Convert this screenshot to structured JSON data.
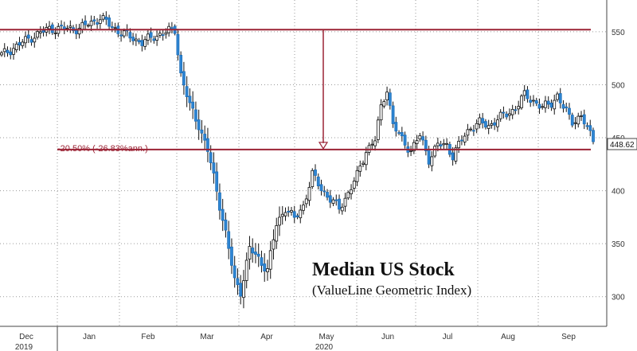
{
  "chart_data": {
    "type": "candlestick",
    "title": "Median US Stock",
    "subtitle": "(ValueLine Geometric Index)",
    "ylim": [
      272,
      580
    ],
    "y_ticks": [
      300,
      350,
      400,
      450,
      500,
      550
    ],
    "grid": true,
    "x_labels": [
      {
        "label": "Dec",
        "sub": "2019",
        "pos": 0
      },
      {
        "label": "Jan",
        "sub": "",
        "pos": 1
      },
      {
        "label": "Feb",
        "sub": "",
        "pos": 2
      },
      {
        "label": "Mar",
        "sub": "",
        "pos": 3
      },
      {
        "label": "Apr",
        "sub": "",
        "pos": 4
      },
      {
        "label": "May",
        "sub": "2020",
        "pos": 5
      },
      {
        "label": "Jun",
        "sub": "",
        "pos": 6
      },
      {
        "label": "Jul",
        "sub": "",
        "pos": 7
      },
      {
        "label": "Aug",
        "sub": "",
        "pos": 8
      },
      {
        "label": "Sep",
        "sub": "",
        "pos": 9
      }
    ],
    "last_value": "448.62",
    "annotation": "-20.50% (-26.83%ann.)",
    "levels": {
      "top": 552,
      "bottom": 438.9
    },
    "anchors": [
      [
        0,
        528
      ],
      [
        10,
        545
      ],
      [
        16,
        553
      ],
      [
        26,
        553
      ],
      [
        33,
        563
      ],
      [
        40,
        549
      ],
      [
        47,
        540
      ],
      [
        53,
        548
      ],
      [
        58,
        552
      ],
      [
        60,
        510
      ],
      [
        63,
        480
      ],
      [
        66,
        462
      ],
      [
        69,
        438
      ],
      [
        72,
        400
      ],
      [
        75,
        360
      ],
      [
        78,
        315
      ],
      [
        80,
        305
      ],
      [
        83,
        345
      ],
      [
        86,
        336
      ],
      [
        89,
        325
      ],
      [
        92,
        368
      ],
      [
        95,
        384
      ],
      [
        98,
        373
      ],
      [
        101,
        386
      ],
      [
        104,
        415
      ],
      [
        107,
        402
      ],
      [
        110,
        392
      ],
      [
        113,
        383
      ],
      [
        116,
        398
      ],
      [
        119,
        414
      ],
      [
        122,
        438
      ],
      [
        125,
        448
      ],
      [
        127,
        478
      ],
      [
        129,
        497
      ],
      [
        131,
        462
      ],
      [
        134,
        448
      ],
      [
        137,
        438
      ],
      [
        140,
        452
      ],
      [
        143,
        430
      ],
      [
        146,
        443
      ],
      [
        149,
        443
      ],
      [
        151,
        433
      ],
      [
        154,
        448
      ],
      [
        157,
        460
      ],
      [
        160,
        464
      ],
      [
        163,
        461
      ],
      [
        166,
        468
      ],
      [
        169,
        472
      ],
      [
        172,
        478
      ],
      [
        175,
        490
      ],
      [
        178,
        485
      ],
      [
        181,
        478
      ],
      [
        184,
        483
      ],
      [
        186,
        490
      ],
      [
        188,
        478
      ],
      [
        191,
        466
      ],
      [
        194,
        470
      ],
      [
        196,
        458
      ],
      [
        198,
        449
      ]
    ]
  }
}
